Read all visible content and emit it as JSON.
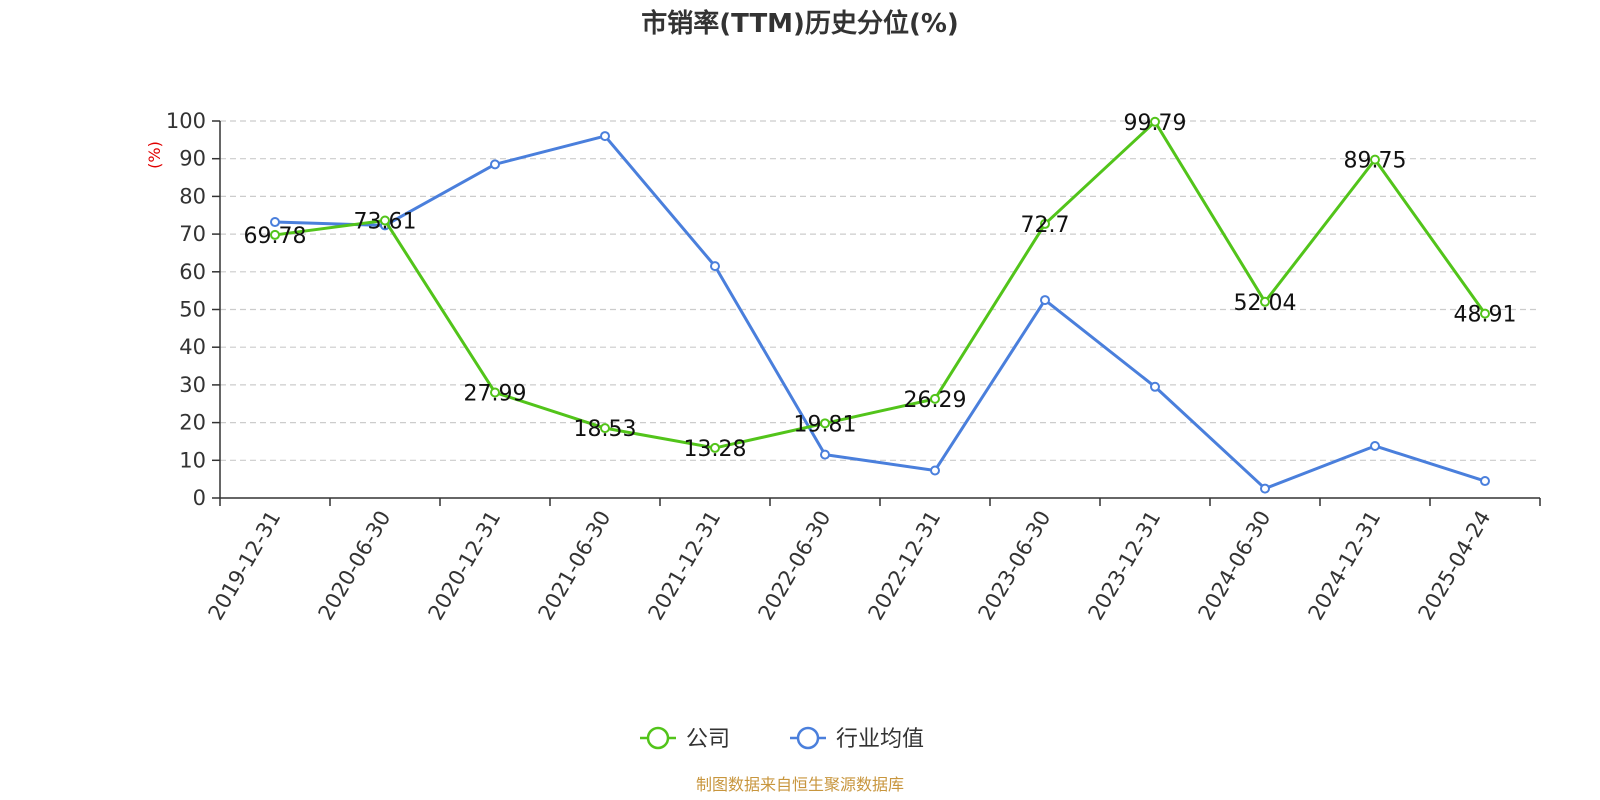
{
  "chart_data": {
    "type": "line",
    "title": "市销率(TTM)历史分位(%)",
    "ylabel": "(%)",
    "ylim": [
      0,
      100
    ],
    "yticks": [
      0,
      10,
      20,
      30,
      40,
      50,
      60,
      70,
      80,
      90,
      100
    ],
    "categories": [
      "2019-12-31",
      "2020-06-30",
      "2020-12-31",
      "2021-06-30",
      "2021-12-31",
      "2022-06-30",
      "2022-12-31",
      "2023-06-30",
      "2023-12-31",
      "2024-06-30",
      "2024-12-31",
      "2025-04-24"
    ],
    "grid": true,
    "legend_position": "bottom-center",
    "series": [
      {
        "name": "公司",
        "color": "#52c41a",
        "values": [
          69.78,
          73.61,
          27.99,
          18.53,
          13.28,
          19.81,
          26.29,
          72.7,
          99.79,
          52.04,
          89.75,
          48.91
        ],
        "labels": [
          "69.78",
          "73.61",
          "27.99",
          "18.53",
          "13.28",
          "19.81",
          "26.29",
          "72.7",
          "99.79",
          "52.04",
          "89.75",
          "48.91"
        ]
      },
      {
        "name": "行业均值",
        "color": "#4a7fdc",
        "values": [
          73.2,
          72.3,
          88.5,
          96.0,
          61.5,
          11.5,
          7.3,
          52.5,
          29.5,
          2.5,
          13.8,
          4.5
        ]
      }
    ],
    "source": "制图数据来自恒生聚源数据库"
  }
}
